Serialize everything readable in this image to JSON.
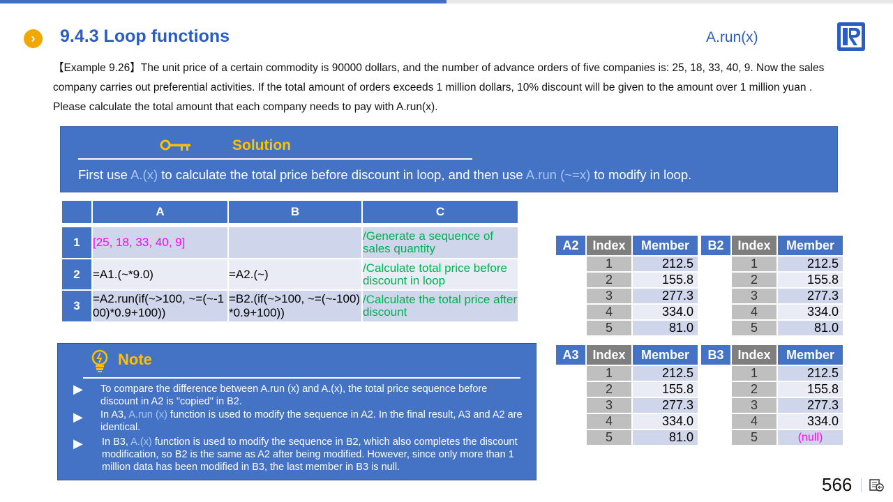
{
  "header": {
    "title": "9.4.3 Loop functions",
    "subtitle": "A.run(x)",
    "logo_icon": "raqsoft-r-logo"
  },
  "example": {
    "text": "【Example 9.26】The unit price of a certain commodity is 90000 dollars, and the number of advance orders of five companies is: 25, 18, 33, 40, 9. Now the sales company carries out preferential activities. If the total amount of orders exceeds 1 million dollars, 10% discount will be given to the amount over 1 million yuan . Please calculate the total amount that each company needs to pay with A.run(x)."
  },
  "solution": {
    "title": "Solution",
    "parts": [
      "First use ",
      "A.(x)",
      " to calculate the total price before discount in loop, and then use ",
      "A.run (~=x)",
      " to modify in loop."
    ]
  },
  "grid": {
    "columns": [
      "A",
      "B",
      "C"
    ],
    "rows": [
      {
        "num": "1",
        "a": "[25, 18, 33, 40, 9]",
        "b": "",
        "c": "/Generate a sequence of sales quantity"
      },
      {
        "num": "2",
        "a": "=A1.(~*9.0)",
        "b": "=A2.(~)",
        "c": "/Calculate total price before discount in loop"
      },
      {
        "num": "3",
        "a": "=A2.run(if(~>100, ~=(~-100)*0.9+100))",
        "b": "=B2.(if(~>100, ~=(~-100)*0.9+100))",
        "c": "/Calculate the total price after discount"
      }
    ]
  },
  "results": {
    "index_label": "Index",
    "member_label": "Member",
    "tables": [
      {
        "name": "A2",
        "values": [
          "212.5",
          "155.8",
          "277.3",
          "334.0",
          "81.0"
        ]
      },
      {
        "name": "B2",
        "values": [
          "212.5",
          "155.8",
          "277.3",
          "334.0",
          "81.0"
        ]
      },
      {
        "name": "A3",
        "values": [
          "212.5",
          "155.8",
          "277.3",
          "334.0",
          "81.0"
        ]
      },
      {
        "name": "B3",
        "values": [
          "212.5",
          "155.8",
          "277.3",
          "334.0",
          "(null)"
        ]
      }
    ]
  },
  "note": {
    "title": "Note",
    "items": [
      [
        "To compare the difference between A.run (x) and A.(x), the total price sequence before discount in A2 is \"copied\" in B2.",
        "",
        ""
      ],
      [
        "In A3, ",
        "A.run (x)",
        " function is used to modify the sequence in A2. In the final result, A3 and A2 are identical."
      ],
      [
        "In B3, ",
        "A.(x)",
        " function is used to modify the sequence in B2, which also completes the discount modification, so B2 is the same as A2 after being modified. However, since only more than 1 million data has been modified in B3, the last member in B3 is null."
      ]
    ]
  },
  "footer": {
    "page_number": "566"
  },
  "colors": {
    "accent": "#4472c4",
    "gold": "#ffc000",
    "comment": "#00b050",
    "constant": "#ff00ff"
  }
}
